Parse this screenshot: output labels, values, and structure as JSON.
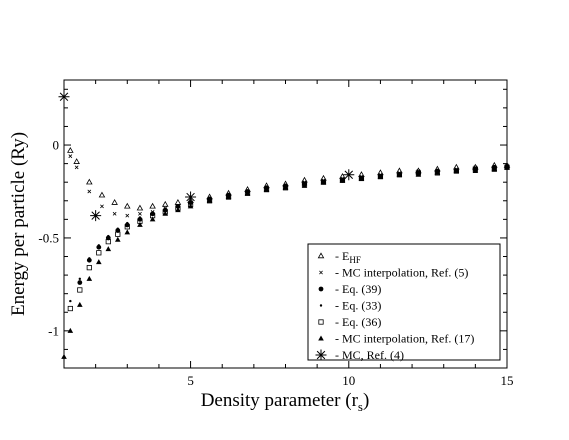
{
  "chart_data": {
    "type": "scatter",
    "xlabel_main": "Density parameter (r",
    "xlabel_sub": "s",
    "xlabel_end": ")",
    "ylabel": "Energy per particle (Ry)",
    "xlim": [
      1,
      15
    ],
    "ylim": [
      -1.2,
      0.35
    ],
    "x_ticks": [
      5,
      10,
      15
    ],
    "y_ticks": [
      -1,
      -0.5,
      0
    ],
    "grid": false,
    "legend_position": "bottom-right",
    "series": [
      {
        "name_main": "E",
        "name_sub": "HF",
        "marker": "triangle-open",
        "x": [
          1.2,
          1.4,
          1.8,
          2.2,
          2.6,
          3.0,
          3.4,
          3.8,
          4.2,
          4.6,
          5.0,
          5.6,
          6.2,
          6.8,
          7.4,
          8.0,
          8.6,
          9.2,
          9.8,
          10.4,
          11.0,
          11.6,
          12.2,
          12.8,
          13.4,
          14.0,
          14.6,
          15.0
        ],
        "y": [
          -0.03,
          -0.09,
          -0.2,
          -0.27,
          -0.31,
          -0.33,
          -0.34,
          -0.33,
          -0.32,
          -0.31,
          -0.3,
          -0.28,
          -0.26,
          -0.24,
          -0.22,
          -0.21,
          -0.19,
          -0.18,
          -0.17,
          -0.16,
          -0.15,
          -0.14,
          -0.14,
          -0.13,
          -0.12,
          -0.12,
          -0.11,
          -0.11
        ]
      },
      {
        "name": "MC interpolation, Ref.  (5)",
        "marker": "cross",
        "x": [
          1.2,
          1.4,
          1.8,
          2.2,
          2.6,
          3.0,
          3.4,
          3.8,
          4.2,
          4.6,
          5.0,
          5.6,
          6.2,
          6.8,
          7.4,
          8.0,
          8.6,
          9.2,
          9.8,
          10.4,
          11.0,
          11.6,
          12.2,
          12.8,
          13.4,
          14.0,
          14.6,
          15.0
        ],
        "y": [
          -0.06,
          -0.12,
          -0.25,
          -0.33,
          -0.37,
          -0.38,
          -0.37,
          -0.36,
          -0.34,
          -0.33,
          -0.31,
          -0.29,
          -0.27,
          -0.25,
          -0.23,
          -0.22,
          -0.2,
          -0.19,
          -0.18,
          -0.17,
          -0.16,
          -0.15,
          -0.14,
          -0.14,
          -0.13,
          -0.12,
          -0.12,
          -0.11
        ]
      },
      {
        "name": "Eq. (39)",
        "marker": "circle-filled",
        "x": [
          1.5,
          1.8,
          2.1,
          2.4,
          2.7,
          3.0,
          3.4,
          3.8,
          4.2,
          4.6,
          5.0,
          5.6,
          6.2,
          6.8,
          7.4,
          8.0,
          8.6,
          9.2,
          9.8,
          10.4,
          11.0,
          11.6,
          12.2,
          12.8,
          13.4,
          14.0,
          14.6,
          15.0
        ],
        "y": [
          -0.74,
          -0.62,
          -0.55,
          -0.5,
          -0.46,
          -0.43,
          -0.4,
          -0.37,
          -0.35,
          -0.33,
          -0.31,
          -0.29,
          -0.27,
          -0.25,
          -0.23,
          -0.22,
          -0.21,
          -0.2,
          -0.19,
          -0.18,
          -0.17,
          -0.16,
          -0.15,
          -0.14,
          -0.14,
          -0.13,
          -0.12,
          -0.12
        ]
      },
      {
        "name": "Eq. (33)",
        "marker": "dot",
        "x": [
          1.2,
          1.5,
          1.8,
          2.1,
          2.4,
          2.7,
          3.0,
          3.4,
          3.8,
          4.2,
          4.6,
          5.0,
          5.6,
          6.2,
          6.8,
          7.4,
          8.0,
          8.6,
          9.2,
          9.8,
          10.4,
          11.0,
          11.6,
          12.2,
          12.8,
          13.4,
          14.0,
          14.6,
          15.0
        ],
        "y": [
          -0.84,
          -0.72,
          -0.61,
          -0.54,
          -0.49,
          -0.45,
          -0.42,
          -0.39,
          -0.37,
          -0.35,
          -0.33,
          -0.31,
          -0.29,
          -0.27,
          -0.25,
          -0.23,
          -0.22,
          -0.21,
          -0.2,
          -0.19,
          -0.18,
          -0.17,
          -0.16,
          -0.15,
          -0.14,
          -0.14,
          -0.13,
          -0.12,
          -0.12
        ]
      },
      {
        "name": "Eq. (36)",
        "marker": "square-open",
        "x": [
          1.2,
          1.5,
          1.8,
          2.1,
          2.4,
          2.7,
          3.0,
          3.4,
          3.8,
          4.2,
          4.6,
          5.0,
          5.6,
          6.2,
          6.8,
          7.4,
          8.0,
          8.6,
          9.2,
          9.8,
          10.4,
          11.0,
          11.6,
          12.2,
          12.8,
          13.4,
          14.0,
          14.6,
          15.0
        ],
        "y": [
          -0.88,
          -0.78,
          -0.66,
          -0.58,
          -0.52,
          -0.48,
          -0.44,
          -0.41,
          -0.38,
          -0.36,
          -0.34,
          -0.32,
          -0.3,
          -0.28,
          -0.26,
          -0.24,
          -0.23,
          -0.21,
          -0.2,
          -0.19,
          -0.18,
          -0.17,
          -0.16,
          -0.15,
          -0.15,
          -0.14,
          -0.13,
          -0.13,
          -0.12
        ]
      },
      {
        "name": "MC interpolation, Ref.  (17)",
        "marker": "triangle-filled",
        "x": [
          1.0,
          1.2,
          1.5,
          1.8,
          2.1,
          2.4,
          2.7,
          3.0,
          3.4,
          3.8,
          4.2,
          4.6,
          5.0,
          5.6,
          6.2,
          6.8,
          7.4,
          8.0,
          8.6,
          9.2,
          9.8,
          10.4,
          11.0,
          11.6,
          12.2,
          12.8,
          13.4,
          14.0,
          14.6,
          15.0
        ],
        "y": [
          -1.14,
          -1.0,
          -0.86,
          -0.72,
          -0.63,
          -0.56,
          -0.51,
          -0.47,
          -0.43,
          -0.4,
          -0.37,
          -0.35,
          -0.33,
          -0.3,
          -0.28,
          -0.26,
          -0.24,
          -0.23,
          -0.22,
          -0.2,
          -0.19,
          -0.18,
          -0.17,
          -0.16,
          -0.16,
          -0.15,
          -0.14,
          -0.14,
          -0.13,
          -0.12
        ]
      },
      {
        "name": "MC, Ref.  (4)",
        "marker": "asterisk",
        "x": [
          1.0,
          2.0,
          5.0,
          10.0
        ],
        "y": [
          0.26,
          -0.38,
          -0.28,
          -0.16
        ]
      }
    ]
  }
}
